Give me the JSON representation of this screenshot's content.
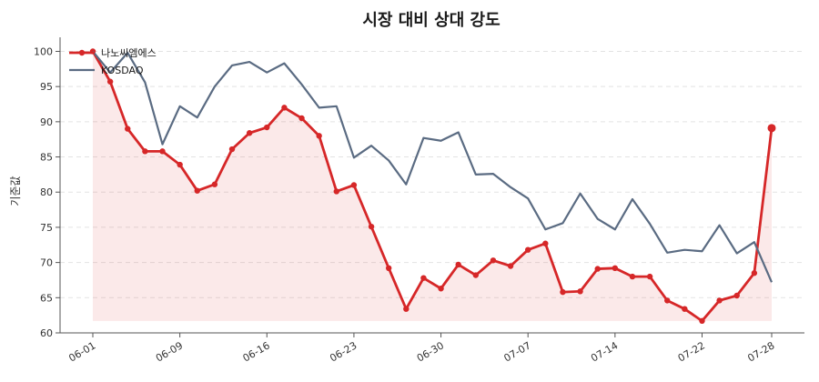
{
  "chart_data": {
    "type": "line",
    "title": "시장 대비 상대 강도",
    "xlabel": "",
    "ylabel": "기준값",
    "ylim": [
      60,
      102
    ],
    "yticks": [
      60,
      65,
      70,
      75,
      80,
      85,
      90,
      95,
      100
    ],
    "x_tick_labels": [
      "06-01",
      "06-09",
      "06-16",
      "06-23",
      "06-30",
      "07-07",
      "07-14",
      "07-22",
      "07-28"
    ],
    "x_tick_indices": [
      0,
      5,
      10,
      15,
      20,
      25,
      30,
      35,
      39
    ],
    "grid": "horizontal dashed",
    "legend_position": "top-left",
    "series": [
      {
        "name": "나노씨엠에스",
        "color": "#d62728",
        "fill": true,
        "markers": true,
        "values": [
          100.0,
          95.7,
          89.0,
          85.8,
          85.8,
          83.9,
          80.2,
          81.1,
          86.1,
          88.4,
          89.2,
          92.0,
          90.5,
          88.0,
          80.1,
          81.0,
          75.1,
          69.2,
          63.4,
          67.8,
          66.3,
          69.7,
          68.2,
          70.3,
          69.5,
          71.8,
          72.7,
          65.8,
          65.9,
          69.1,
          69.2,
          68.0,
          68.0,
          64.6,
          63.4,
          61.7,
          64.6,
          65.3,
          68.5,
          89.1
        ]
      },
      {
        "name": "KOSDAQ",
        "color": "#5a6b82",
        "fill": false,
        "markers": false,
        "values": [
          100.0,
          97.0,
          99.8,
          95.6,
          86.8,
          92.2,
          90.6,
          95.0,
          98.0,
          98.5,
          97.0,
          98.3,
          95.3,
          92.0,
          92.2,
          84.9,
          86.6,
          84.5,
          81.1,
          87.7,
          87.3,
          88.5,
          82.5,
          82.6,
          80.7,
          79.1,
          74.7,
          75.6,
          79.8,
          76.2,
          74.7,
          79.0,
          75.5,
          71.4,
          71.8,
          71.6,
          75.3,
          71.3,
          72.9,
          67.2
        ]
      }
    ]
  }
}
